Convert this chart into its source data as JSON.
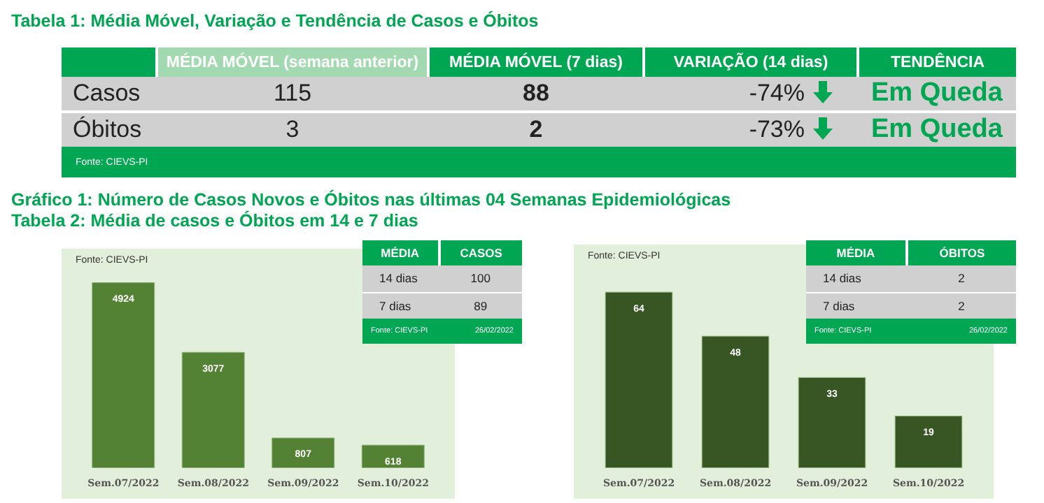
{
  "chart_data": [
    {
      "type": "other",
      "title": "Tabela 1: Média Móvel, Variação e Tendência de Casos e Óbitos",
      "annotations": [
        "MÉDIA MÓVEL (semana anterior)",
        "MÉDIA MÓVEL (7 dias)",
        "VARIAÇÃO (14 dias)",
        "TENDÊNCIA",
        "Casos",
        "115",
        "88",
        "-74%",
        "Em Queda",
        "Óbitos",
        "3",
        "2",
        "-73%",
        "Em Queda",
        "Fonte: CIEVS-PI"
      ]
    },
    {
      "type": "bar",
      "title": "Gráfico 1: Número de Casos Novos e Óbitos nas últimas 04 Semanas Epidemiológicas",
      "subtitle": "Tabela 2: Média de casos e Óbitos em 14 e 7 dias",
      "categories": [
        "Sem.07/2022",
        "Sem.08/2022",
        "Sem.09/2022",
        "Sem.10/2022"
      ],
      "values": [
        4924,
        3077,
        807,
        618
      ],
      "color": "#548235",
      "data_labels": true,
      "tick_labels": "x",
      "annotations": [
        "Fonte: CIEVS-PI"
      ]
    },
    {
      "type": "other",
      "annotations": [
        "MÉDIA",
        "CASOS",
        "14 dias",
        "100",
        "7 dias",
        "89",
        "Fonte: CIEVS-PI",
        "26/02/2022"
      ]
    },
    {
      "type": "bar",
      "categories": [
        "Sem.07/2022",
        "Sem.08/2022",
        "Sem.09/2022",
        "Sem.10/2022"
      ],
      "values": [
        64,
        48,
        33,
        19
      ],
      "color": "#375623",
      "data_labels": true,
      "tick_labels": "x",
      "annotations": [
        "Fonte: CIEVS-PI"
      ]
    },
    {
      "type": "other",
      "annotations": [
        "MÉDIA",
        "ÓBITOS",
        "14 dias",
        "2",
        "7 dias",
        "2",
        "Fonte: CIEVS-PI",
        "26/02/2022"
      ]
    }
  ]
}
